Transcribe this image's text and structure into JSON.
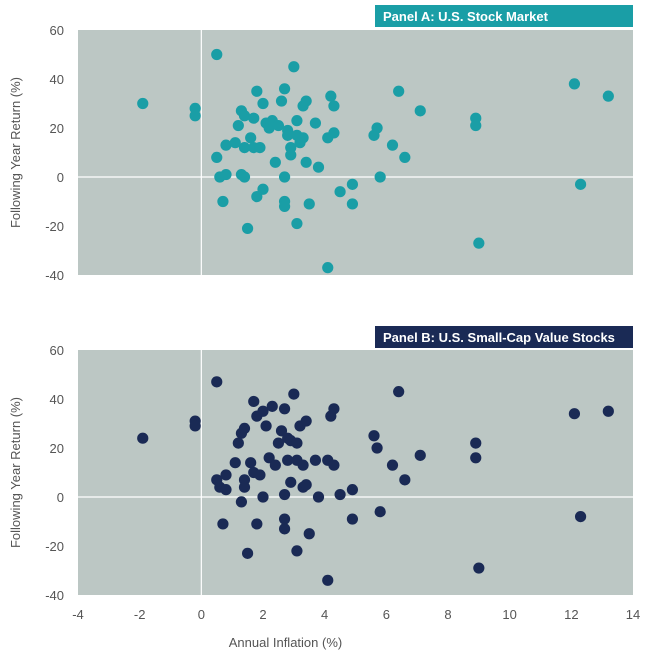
{
  "chart_data": [
    {
      "type": "scatter",
      "title": "Panel A: U.S. Stock Market",
      "xlabel": "",
      "ylabel": "Following Year  Return (%)",
      "xlim": [
        -4,
        14
      ],
      "ylim": [
        -40,
        60
      ],
      "x_ticks": [
        "-4",
        "-2",
        "0",
        "2",
        "4",
        "6",
        "8",
        "10",
        "12",
        "14"
      ],
      "y_ticks": [
        "-40",
        "-20",
        "0",
        "20",
        "40",
        "60"
      ],
      "show_x_tick_labels": false,
      "grid": false,
      "colors": {
        "background": "#bcc7c4",
        "marker": "#1a9ea6",
        "title_bg": "#1a9ea6",
        "title_text": "#ffffff",
        "zero_line": "#ffffff"
      },
      "points": [
        [
          -1.9,
          30
        ],
        [
          -0.2,
          28
        ],
        [
          -0.2,
          25
        ],
        [
          0.5,
          50
        ],
        [
          0.5,
          8
        ],
        [
          0.6,
          0
        ],
        [
          0.7,
          -10
        ],
        [
          0.8,
          13
        ],
        [
          0.8,
          1
        ],
        [
          1.1,
          14
        ],
        [
          1.2,
          21
        ],
        [
          1.3,
          27
        ],
        [
          1.3,
          1
        ],
        [
          1.4,
          25
        ],
        [
          1.4,
          0
        ],
        [
          1.4,
          12
        ],
        [
          1.5,
          -21
        ],
        [
          1.6,
          16
        ],
        [
          1.7,
          24
        ],
        [
          1.7,
          12
        ],
        [
          1.8,
          35
        ],
        [
          1.8,
          -8
        ],
        [
          1.9,
          12
        ],
        [
          2.0,
          30
        ],
        [
          2.0,
          -5
        ],
        [
          2.1,
          22
        ],
        [
          2.2,
          20
        ],
        [
          2.3,
          23
        ],
        [
          2.4,
          6
        ],
        [
          2.5,
          21
        ],
        [
          2.6,
          31
        ],
        [
          2.7,
          36
        ],
        [
          2.7,
          0
        ],
        [
          2.7,
          -10
        ],
        [
          2.7,
          -12
        ],
        [
          2.8,
          19
        ],
        [
          2.8,
          17
        ],
        [
          2.9,
          12
        ],
        [
          2.9,
          9
        ],
        [
          3.0,
          45
        ],
        [
          3.1,
          23
        ],
        [
          3.1,
          17
        ],
        [
          3.1,
          -19
        ],
        [
          3.2,
          14
        ],
        [
          3.3,
          29
        ],
        [
          3.3,
          16
        ],
        [
          3.4,
          31
        ],
        [
          3.4,
          6
        ],
        [
          3.5,
          -11
        ],
        [
          3.7,
          22
        ],
        [
          3.8,
          4
        ],
        [
          4.1,
          16
        ],
        [
          4.1,
          -37
        ],
        [
          4.2,
          33
        ],
        [
          4.3,
          29
        ],
        [
          4.3,
          18
        ],
        [
          4.5,
          -6
        ],
        [
          4.9,
          -3
        ],
        [
          4.9,
          -11
        ],
        [
          5.6,
          17
        ],
        [
          5.7,
          20
        ],
        [
          5.8,
          0
        ],
        [
          6.2,
          13
        ],
        [
          6.4,
          35
        ],
        [
          6.6,
          8
        ],
        [
          7.1,
          27
        ],
        [
          8.9,
          24
        ],
        [
          8.9,
          21
        ],
        [
          9.0,
          -27
        ],
        [
          12.1,
          38
        ],
        [
          12.3,
          -3
        ],
        [
          13.2,
          33
        ]
      ]
    },
    {
      "type": "scatter",
      "title": "Panel B: U.S. Small-Cap Value Stocks",
      "xlabel": "Annual Inflation (%)",
      "ylabel": "Following Year Return (%)",
      "xlim": [
        -4,
        14
      ],
      "ylim": [
        -40,
        60
      ],
      "x_ticks": [
        "-4",
        "-2",
        "0",
        "2",
        "4",
        "6",
        "8",
        "10",
        "12",
        "14"
      ],
      "y_ticks": [
        "-40",
        "-20",
        "0",
        "20",
        "40",
        "60"
      ],
      "show_x_tick_labels": true,
      "grid": false,
      "colors": {
        "background": "#bcc7c4",
        "marker": "#1a2a55",
        "title_bg": "#1a2a55",
        "title_text": "#ffffff",
        "zero_line": "#ffffff"
      },
      "points": [
        [
          -1.9,
          24
        ],
        [
          -0.2,
          31
        ],
        [
          -0.2,
          29
        ],
        [
          0.5,
          47
        ],
        [
          0.5,
          7
        ],
        [
          0.6,
          4
        ],
        [
          0.7,
          -11
        ],
        [
          0.8,
          9
        ],
        [
          0.8,
          3
        ],
        [
          1.1,
          14
        ],
        [
          1.2,
          22
        ],
        [
          1.3,
          26
        ],
        [
          1.3,
          -2
        ],
        [
          1.4,
          28
        ],
        [
          1.4,
          7
        ],
        [
          1.4,
          4
        ],
        [
          1.5,
          -23
        ],
        [
          1.6,
          14
        ],
        [
          1.7,
          39
        ],
        [
          1.7,
          10
        ],
        [
          1.8,
          33
        ],
        [
          1.8,
          -11
        ],
        [
          1.9,
          9
        ],
        [
          2.0,
          35
        ],
        [
          2.0,
          0
        ],
        [
          2.1,
          29
        ],
        [
          2.2,
          16
        ],
        [
          2.3,
          37
        ],
        [
          2.4,
          13
        ],
        [
          2.5,
          22
        ],
        [
          2.6,
          27
        ],
        [
          2.7,
          36
        ],
        [
          2.7,
          1
        ],
        [
          2.7,
          -9
        ],
        [
          2.7,
          -13
        ],
        [
          2.8,
          24
        ],
        [
          2.8,
          15
        ],
        [
          2.9,
          23
        ],
        [
          2.9,
          6
        ],
        [
          3.0,
          42
        ],
        [
          3.1,
          15
        ],
        [
          3.1,
          22
        ],
        [
          3.1,
          -22
        ],
        [
          3.2,
          29
        ],
        [
          3.3,
          13
        ],
        [
          3.3,
          4
        ],
        [
          3.4,
          31
        ],
        [
          3.4,
          5
        ],
        [
          3.5,
          -15
        ],
        [
          3.7,
          15
        ],
        [
          3.8,
          0
        ],
        [
          4.1,
          15
        ],
        [
          4.1,
          -34
        ],
        [
          4.2,
          33
        ],
        [
          4.3,
          36
        ],
        [
          4.3,
          13
        ],
        [
          4.5,
          1
        ],
        [
          4.9,
          3
        ],
        [
          4.9,
          -9
        ],
        [
          5.6,
          25
        ],
        [
          5.7,
          20
        ],
        [
          5.8,
          -6
        ],
        [
          6.2,
          13
        ],
        [
          6.4,
          43
        ],
        [
          6.6,
          7
        ],
        [
          7.1,
          17
        ],
        [
          8.9,
          22
        ],
        [
          8.9,
          16
        ],
        [
          9.0,
          -29
        ],
        [
          12.1,
          34
        ],
        [
          12.3,
          -8
        ],
        [
          13.2,
          35
        ]
      ]
    }
  ]
}
